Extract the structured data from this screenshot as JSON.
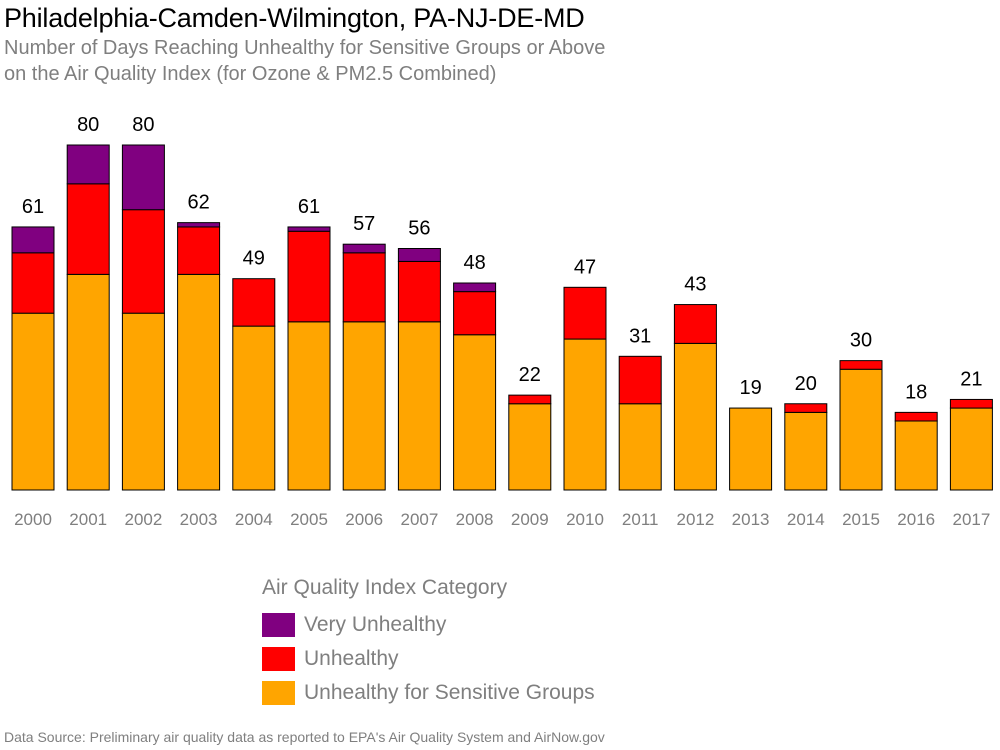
{
  "title": "Philadelphia-Camden-Wilmington, PA-NJ-DE-MD",
  "subtitle_line1": "Number of Days Reaching Unhealthy for Sensitive Groups or Above",
  "subtitle_line2": "on the Air Quality Index (for Ozone & PM2.5 Combined)",
  "source": "Data Source: Preliminary air quality data as reported to EPA's Air Quality System and AirNow.gov",
  "legend": {
    "title": "Air Quality Index Category",
    "items": [
      {
        "label": "Very Unhealthy",
        "color": "#800080"
      },
      {
        "label": "Unhealthy",
        "color": "#ff0000"
      },
      {
        "label": "Unhealthy for Sensitive Groups",
        "color": "#ffa500"
      }
    ]
  },
  "chart_data": {
    "type": "bar",
    "stacked": true,
    "categories": [
      "2000",
      "2001",
      "2002",
      "2003",
      "2004",
      "2005",
      "2006",
      "2007",
      "2008",
      "2009",
      "2010",
      "2011",
      "2012",
      "2013",
      "2014",
      "2015",
      "2016",
      "2017"
    ],
    "series": [
      {
        "name": "Unhealthy for Sensitive Groups",
        "color": "#ffa500",
        "values": [
          41,
          50,
          41,
          50,
          38,
          39,
          39,
          39,
          36,
          20,
          35,
          20,
          34,
          19,
          18,
          28,
          16,
          19
        ]
      },
      {
        "name": "Unhealthy",
        "color": "#ff0000",
        "values": [
          14,
          21,
          24,
          11,
          11,
          21,
          16,
          14,
          10,
          2,
          12,
          11,
          9,
          0,
          2,
          2,
          2,
          2
        ]
      },
      {
        "name": "Very Unhealthy",
        "color": "#800080",
        "values": [
          6,
          9,
          15,
          1,
          0,
          1,
          2,
          3,
          2,
          0,
          0,
          0,
          0,
          0,
          0,
          0,
          0,
          0
        ]
      }
    ],
    "totals": [
      61,
      80,
      80,
      62,
      49,
      61,
      57,
      56,
      48,
      22,
      47,
      31,
      43,
      19,
      20,
      30,
      18,
      21
    ],
    "ylim": [
      0,
      80
    ],
    "grid": false,
    "legend_position": "bottom"
  }
}
